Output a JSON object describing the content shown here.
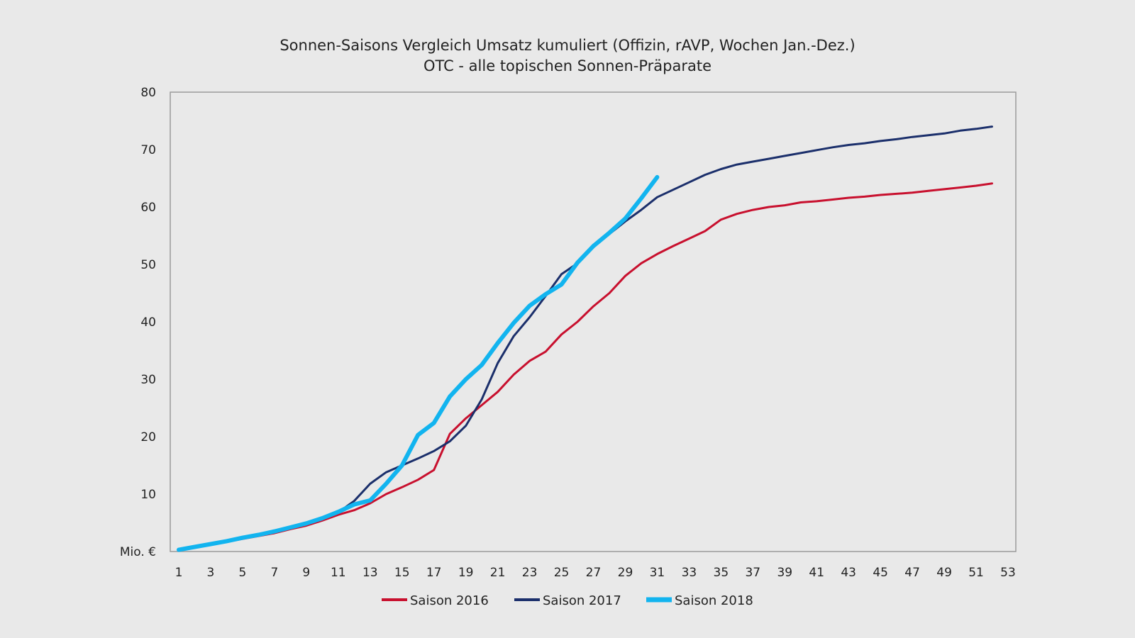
{
  "chart_data": {
    "type": "line",
    "title": "Sonnen-Saisons Vergleich Umsatz kumuliert (Offizin, rAVP, Wochen Jan.-Dez.)",
    "subtitle": "OTC - alle topischen Sonnen-Präparate",
    "ylabel": "Mio. €",
    "xlabel": "",
    "ylim": [
      0,
      80
    ],
    "xlim": [
      1,
      53
    ],
    "yticks": [
      "Mio. €",
      "10",
      "20",
      "30",
      "40",
      "50",
      "60",
      "70",
      "80"
    ],
    "xticks": [
      "1",
      "3",
      "5",
      "7",
      "9",
      "11",
      "13",
      "15",
      "17",
      "19",
      "21",
      "23",
      "25",
      "27",
      "29",
      "31",
      "33",
      "35",
      "37",
      "39",
      "41",
      "43",
      "45",
      "47",
      "49",
      "51",
      "53"
    ],
    "grid": false,
    "legend_position": "bottom",
    "series": [
      {
        "name": "Saison 2016",
        "color": "#c8102e",
        "x_start": 1,
        "values": [
          0.3,
          0.8,
          1.2,
          1.7,
          2.2,
          2.7,
          3.2,
          3.9,
          4.5,
          5.4,
          6.4,
          7.2,
          8.4,
          10.0,
          11.2,
          12.5,
          14.2,
          20.5,
          23.2,
          25.5,
          27.8,
          30.8,
          33.2,
          34.8,
          37.8,
          40.0,
          42.7,
          45.0,
          48.0,
          50.2,
          51.8,
          53.2,
          54.5,
          55.8,
          57.8,
          58.8,
          59.5,
          60.0,
          60.3,
          60.8,
          61.0,
          61.3,
          61.6,
          61.8,
          62.1,
          62.3,
          62.5,
          62.8,
          63.1,
          63.4,
          63.7,
          64.1
        ]
      },
      {
        "name": "Saison 2017",
        "color": "#1b2f6b",
        "x_start": 1,
        "values": [
          0.3,
          0.8,
          1.3,
          1.8,
          2.4,
          2.9,
          3.5,
          4.2,
          4.9,
          5.8,
          6.8,
          8.8,
          11.8,
          13.8,
          15.0,
          16.2,
          17.5,
          19.2,
          21.9,
          26.5,
          32.8,
          37.5,
          40.8,
          44.5,
          48.3,
          50.2,
          53.0,
          55.3,
          57.5,
          59.5,
          61.7,
          63.0,
          64.3,
          65.6,
          66.6,
          67.4,
          67.9,
          68.4,
          68.9,
          69.4,
          69.9,
          70.4,
          70.8,
          71.1,
          71.5,
          71.8,
          72.2,
          72.5,
          72.8,
          73.3,
          73.6,
          74.0
        ]
      },
      {
        "name": "Saison 2018",
        "color": "#12b4ef",
        "x_start": 1,
        "values": [
          0.3,
          0.8,
          1.3,
          1.8,
          2.4,
          2.9,
          3.5,
          4.2,
          4.9,
          5.8,
          6.9,
          8.2,
          8.9,
          11.8,
          15.0,
          20.3,
          22.4,
          27.0,
          30.0,
          32.5,
          36.3,
          39.8,
          42.8,
          44.8,
          46.5,
          50.3,
          53.2,
          55.5,
          58.0,
          61.5,
          65.2
        ]
      }
    ]
  }
}
